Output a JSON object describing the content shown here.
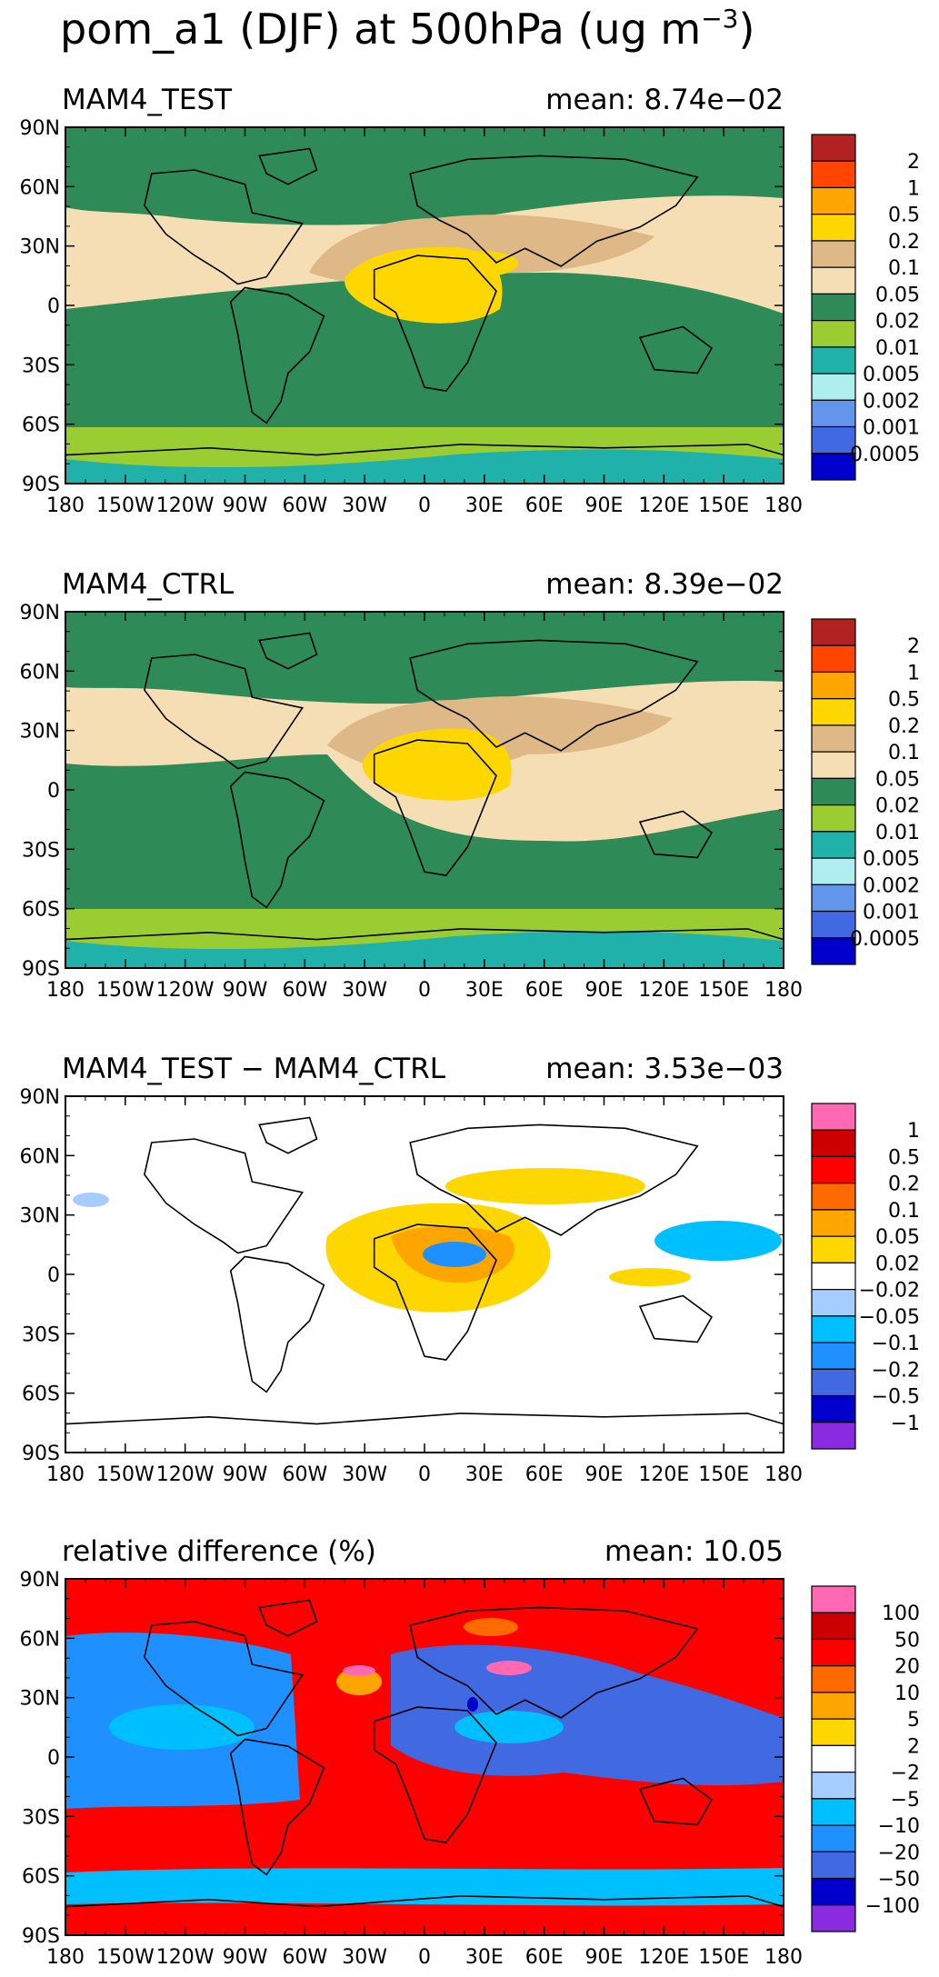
{
  "figure_title": {
    "pre": "pom_a1 (DJF) at 500hPa (ug m",
    "sup": "−3",
    "post": ")"
  },
  "lat_labels": [
    "90N",
    "60N",
    "30N",
    "0",
    "30S",
    "60S",
    "90S"
  ],
  "lon_labels": [
    "180",
    "150W",
    "120W",
    "90W",
    "60W",
    "30W",
    "0",
    "30E",
    "60E",
    "90E",
    "120E",
    "150E",
    "180"
  ],
  "panels": [
    {
      "id": "test",
      "left": "MAM4_TEST",
      "right": "mean: 8.74e−02",
      "field": "conc"
    },
    {
      "id": "ctrl",
      "left": "MAM4_CTRL",
      "right": "mean: 8.39e−02",
      "field": "conc"
    },
    {
      "id": "diff",
      "left": "MAM4_TEST − MAM4_CTRL",
      "right": "mean: 3.53e−03",
      "field": "diff"
    },
    {
      "id": "rel",
      "left": "relative difference (%)",
      "right": "mean: 10.05",
      "field": "rel"
    }
  ],
  "colorbars": {
    "conc": {
      "colors": [
        "#b22222",
        "#ff4500",
        "#ffa500",
        "#ffd700",
        "#deb887",
        "#f5deb3",
        "#2e8b57",
        "#9acd32",
        "#20b2aa",
        "#afeeee",
        "#6495ed",
        "#4169e1",
        "#0000cd"
      ],
      "labels": [
        "2",
        "1",
        "0.5",
        "0.2",
        "0.1",
        "0.05",
        "0.02",
        "0.01",
        "0.005",
        "0.002",
        "0.001",
        "0.0005"
      ]
    },
    "diff": {
      "colors": [
        "#ff69b4",
        "#cd0000",
        "#ff0000",
        "#ff6a00",
        "#ffa500",
        "#ffd700",
        "#ffffff",
        "#a6cdff",
        "#00bfff",
        "#1e90ff",
        "#4169e1",
        "#0000cd",
        "#8a2be2"
      ],
      "labels": [
        "1",
        "0.5",
        "0.2",
        "0.1",
        "0.05",
        "0.02",
        "−0.02",
        "−0.05",
        "−0.1",
        "−0.2",
        "−0.5",
        "−1"
      ]
    },
    "rel": {
      "colors": [
        "#ff69b4",
        "#cd0000",
        "#ff0000",
        "#ff6a00",
        "#ffa500",
        "#ffd700",
        "#ffffff",
        "#a6cdff",
        "#00bfff",
        "#1e90ff",
        "#4169e1",
        "#0000cd",
        "#8a2be2"
      ],
      "labels": [
        "100",
        "50",
        "20",
        "10",
        "5",
        "2",
        "−2",
        "−5",
        "−10",
        "−20",
        "−50",
        "−100"
      ]
    }
  }
}
